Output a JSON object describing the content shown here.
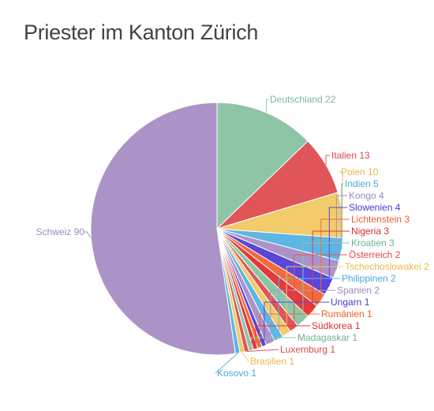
{
  "title": "Priester im Kanton Zürich",
  "chart_data": {
    "type": "pie",
    "title": "Priester im Kanton Zürich",
    "slices": [
      {
        "label": "Deutschland 22",
        "value": 22,
        "color": "#8ec5a6",
        "label_color": "#7fb899"
      },
      {
        "label": "Italien 13",
        "value": 13,
        "color": "#e05557",
        "label_color": "#d94a4c"
      },
      {
        "label": "Polen 10",
        "value": 10,
        "color": "#f2cb6a",
        "label_color": "#e8b84a"
      },
      {
        "label": "Indien 5",
        "value": 5,
        "color": "#5db6e4",
        "label_color": "#4aa8dc"
      },
      {
        "label": "Kongo 4",
        "value": 4,
        "color": "#ab93c7",
        "label_color": "#9e88c2"
      },
      {
        "label": "Slowenien 4",
        "value": 4,
        "color": "#5a46d8",
        "label_color": "#4a38cc"
      },
      {
        "label": "Lichtenstein 3",
        "value": 3,
        "color": "#f26b3a",
        "label_color": "#ee5a2a"
      },
      {
        "label": "Nigeria 3",
        "value": 3,
        "color": "#e23a3a",
        "label_color": "#d62e2e"
      },
      {
        "label": "Kroatien 3",
        "value": 3,
        "color": "#8ec5a6",
        "label_color": "#6fb28e"
      },
      {
        "label": "Österreich 2",
        "value": 2,
        "color": "#e05557",
        "label_color": "#d94a4c"
      },
      {
        "label": "Tschechoslowakei 2",
        "value": 2,
        "color": "#f2cb6a",
        "label_color": "#e8b84a"
      },
      {
        "label": "Philippinen 2",
        "value": 2,
        "color": "#5db6e4",
        "label_color": "#4aa8dc"
      },
      {
        "label": "Spanien 2",
        "value": 2,
        "color": "#ab93c7",
        "label_color": "#9e88c2"
      },
      {
        "label": "Ungarn 1",
        "value": 1,
        "color": "#5a46d8",
        "label_color": "#4a38cc"
      },
      {
        "label": "Rumänien 1",
        "value": 1,
        "color": "#f26b3a",
        "label_color": "#ee5a2a"
      },
      {
        "label": "Südkorea 1",
        "value": 1,
        "color": "#e23a3a",
        "label_color": "#d62e2e"
      },
      {
        "label": "Madagaskar 1",
        "value": 1,
        "color": "#8ec5a6",
        "label_color": "#6fb28e"
      },
      {
        "label": "Luxemburg 1",
        "value": 1,
        "color": "#e05557",
        "label_color": "#d94a4c"
      },
      {
        "label": "Brasilien 1",
        "value": 1,
        "color": "#f2cb6a",
        "label_color": "#e8b84a"
      },
      {
        "label": "Kosovo 1",
        "value": 1,
        "color": "#5db6e4",
        "label_color": "#4aa8dc"
      },
      {
        "label": "Schweiz 90",
        "value": 90,
        "color": "#ab93c7",
        "label_color": "#9e88c2"
      }
    ]
  }
}
